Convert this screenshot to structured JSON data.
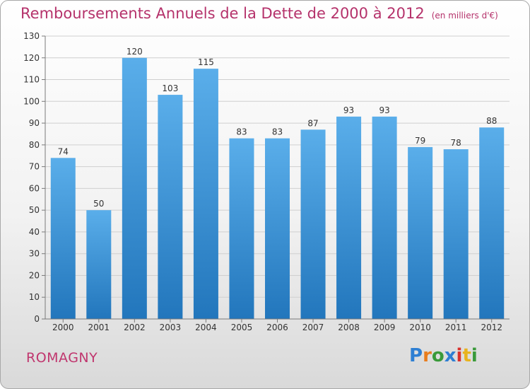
{
  "header": {
    "title": "Remboursements Annuels de la Dette de 2000 à 2012",
    "unit": "(en milliers d'€)"
  },
  "footer": {
    "commune": "ROMAGNY",
    "logo_text": "Proxiti"
  },
  "colors": {
    "title": "#b5326b",
    "bar_top": "#5aaeea",
    "bar_bottom": "#2276bc",
    "axis": "#7a7a7a",
    "grid": "#cfcfcf"
  },
  "chart_data": {
    "type": "bar",
    "title": "Remboursements Annuels de la Dette de 2000 à 2012",
    "xlabel": "",
    "ylabel": "",
    "categories": [
      "2000",
      "2001",
      "2002",
      "2003",
      "2004",
      "2005",
      "2006",
      "2007",
      "2008",
      "2009",
      "2010",
      "2011",
      "2012"
    ],
    "values": [
      74,
      50,
      120,
      103,
      115,
      83,
      83,
      87,
      93,
      93,
      79,
      78,
      88
    ],
    "ylim": [
      0,
      130
    ],
    "yticks": [
      0,
      10,
      20,
      30,
      40,
      50,
      60,
      70,
      80,
      90,
      100,
      110,
      120,
      130
    ],
    "grid": true,
    "data_labels": true
  }
}
